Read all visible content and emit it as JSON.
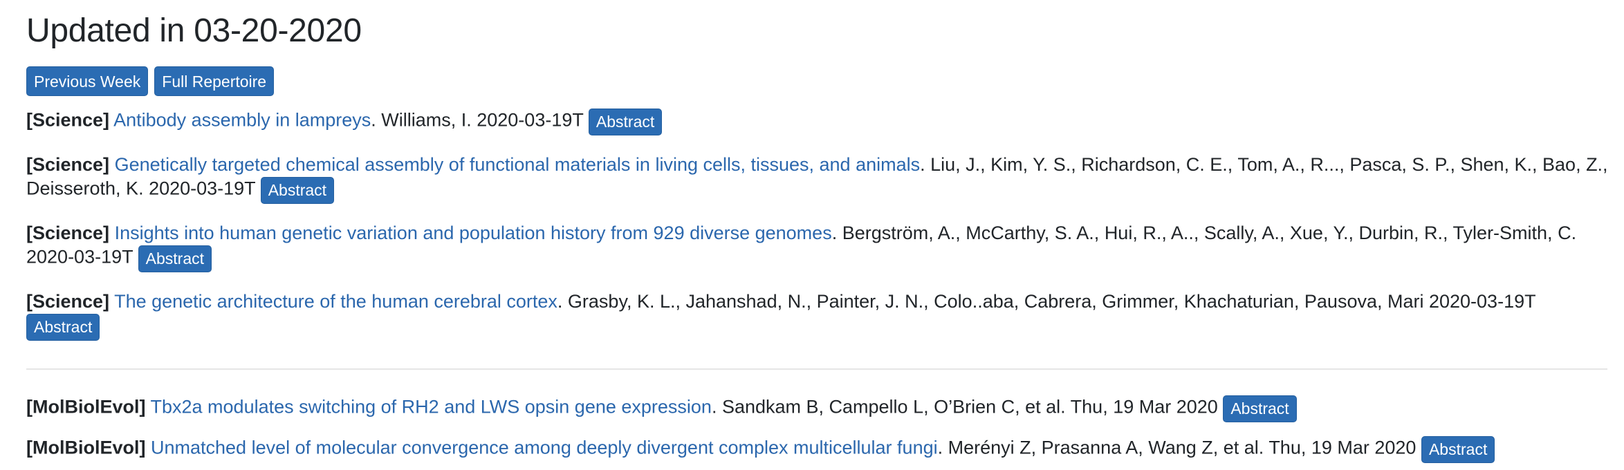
{
  "page": {
    "title": "Updated in 03-20-2020"
  },
  "nav": {
    "previous_week": "Previous Week",
    "full_repertoire": "Full Repertoire"
  },
  "abstract_label": "Abstract",
  "science_entries": [
    {
      "source": "[Science]",
      "title": "Antibody assembly in lampreys",
      "authors": ". Williams, I. 2020-03-19T"
    },
    {
      "source": "[Science]",
      "title": "Genetically targeted chemical assembly of functional materials in living cells, tissues, and animals",
      "authors": ". Liu, J., Kim, Y. S., Richardson, C. E., Tom, A., R..., Pasca, S. P., Shen, K., Bao, Z., Deisseroth, K. 2020-03-19T"
    },
    {
      "source": "[Science]",
      "title": "Insights into human genetic variation and population history from 929 diverse genomes",
      "authors": ". Bergström, A., McCarthy, S. A., Hui, R., A.., Scally, A., Xue, Y., Durbin, R., Tyler-Smith, C. 2020-03-19T"
    },
    {
      "source": "[Science]",
      "title": "The genetic architecture of the human cerebral cortex",
      "authors": ". Grasby, K. L., Jahanshad, N., Painter, J. N., Colo..aba, Cabrera, Grimmer, Khachaturian, Pausova, Mari 2020-03-19T"
    }
  ],
  "molbiolevol_entries": [
    {
      "source": "[MolBiolEvol]",
      "title": "Tbx2a modulates switching of RH2 and LWS opsin gene expression",
      "authors": ". Sandkam B, Campello L, O’Brien C, et al. Thu, 19 Mar 2020"
    },
    {
      "source": "[MolBiolEvol]",
      "title": "Unmatched level of molecular convergence among deeply divergent complex multicellular fungi",
      "authors": ". Merényi Z, Prasanna A, Wang Z, et al. Thu, 19 Mar 2020"
    }
  ],
  "colors": {
    "button": "#2b6cb3",
    "link": "#2b67ad",
    "text": "#212529",
    "divider": "#e6e6e6"
  }
}
